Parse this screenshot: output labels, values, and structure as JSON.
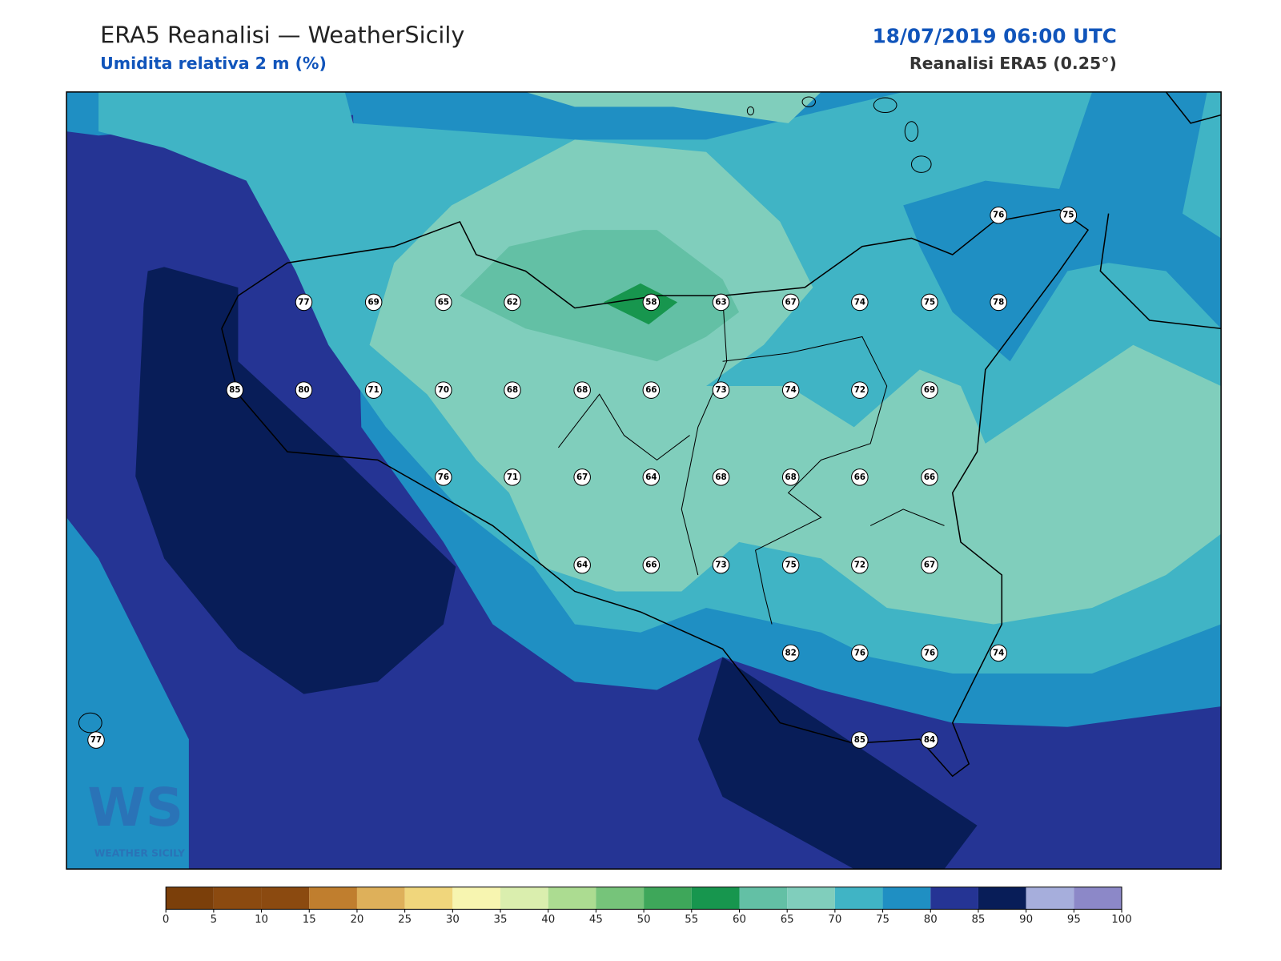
{
  "header": {
    "title": "ERA5 Reanalisi — WeatherSicily",
    "subtitle": "Umidita relativa 2 m (%)",
    "date": "18/07/2019 06:00 UTC",
    "source": "Reanalisi ERA5 (0.25°)"
  },
  "stations": [
    76,
    75,
    77,
    69,
    65,
    62,
    58,
    63,
    67,
    74,
    75,
    78,
    85,
    80,
    71,
    70,
    68,
    68,
    66,
    73,
    74,
    72,
    69,
    76,
    71,
    67,
    64,
    68,
    68,
    66,
    66,
    64,
    66,
    73,
    75,
    72,
    67,
    82,
    76,
    76,
    74,
    77,
    85,
    84
  ],
  "colorbar": {
    "ticks": [
      0,
      5,
      10,
      15,
      20,
      25,
      30,
      35,
      40,
      45,
      50,
      55,
      60,
      65,
      70,
      75,
      80,
      85,
      90,
      95,
      100
    ],
    "colors": [
      "#7b3f0a",
      "#8b4a10",
      "#8b4a10",
      "#c07e2e",
      "#deb05a",
      "#f0d67c",
      "#f7f5b0",
      "#daeeae",
      "#acdc91",
      "#76c47a",
      "#3ea75a",
      "#17964e",
      "#63c0a5",
      "#80cebc",
      "#40b4c5",
      "#1f8fc3",
      "#253494",
      "#081d58",
      "#a6aedc",
      "#8c88c8"
    ]
  },
  "logo": {
    "mark": "WS",
    "text": "WEATHER SICILY"
  }
}
